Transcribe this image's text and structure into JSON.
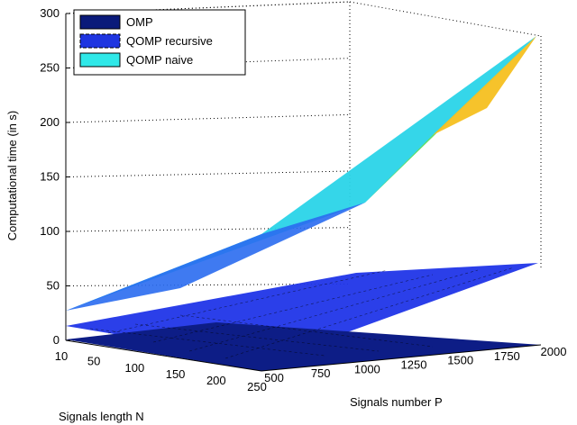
{
  "chart_data": {
    "type": "surface3d",
    "title": "",
    "zlabel": "Computational time (in s)",
    "xlabel": "Signals length N",
    "ylabel": "Signals number P",
    "zlim": [
      0,
      300
    ],
    "z_ticks": [
      "0",
      "50",
      "100",
      "150",
      "200",
      "250",
      "300"
    ],
    "n_ticks": [
      "10",
      "50",
      "100",
      "150",
      "200",
      "250"
    ],
    "p_ticks": [
      "500",
      "750",
      "1000",
      "1250",
      "1500",
      "1750",
      "2000"
    ],
    "grid": true,
    "legend_position": "top-left",
    "legend": [
      {
        "name": "OMP",
        "color": "#0a1a7a"
      },
      {
        "name": "QOMP recursive",
        "color": "#1f35e0"
      },
      {
        "name": "QOMP naive",
        "color": "#2fe8e8"
      }
    ],
    "N_values": [
      10,
      250
    ],
    "P_values": [
      500,
      2000
    ],
    "series": [
      {
        "name": "OMP",
        "corner_values": {
          "N10_P500": 2,
          "N250_P500": 3,
          "N10_P2000": 8,
          "N250_P2000": 6
        }
      },
      {
        "name": "QOMP recursive",
        "corner_values": {
          "N10_P500": 12,
          "N250_P500": 15,
          "N10_P2000": 70,
          "N250_P2000": 72
        }
      },
      {
        "name": "QOMP naive",
        "corner_values": {
          "N10_P500": 30,
          "N250_P500": 47,
          "N10_P2000": 270,
          "N250_P2000": 285
        }
      }
    ]
  }
}
